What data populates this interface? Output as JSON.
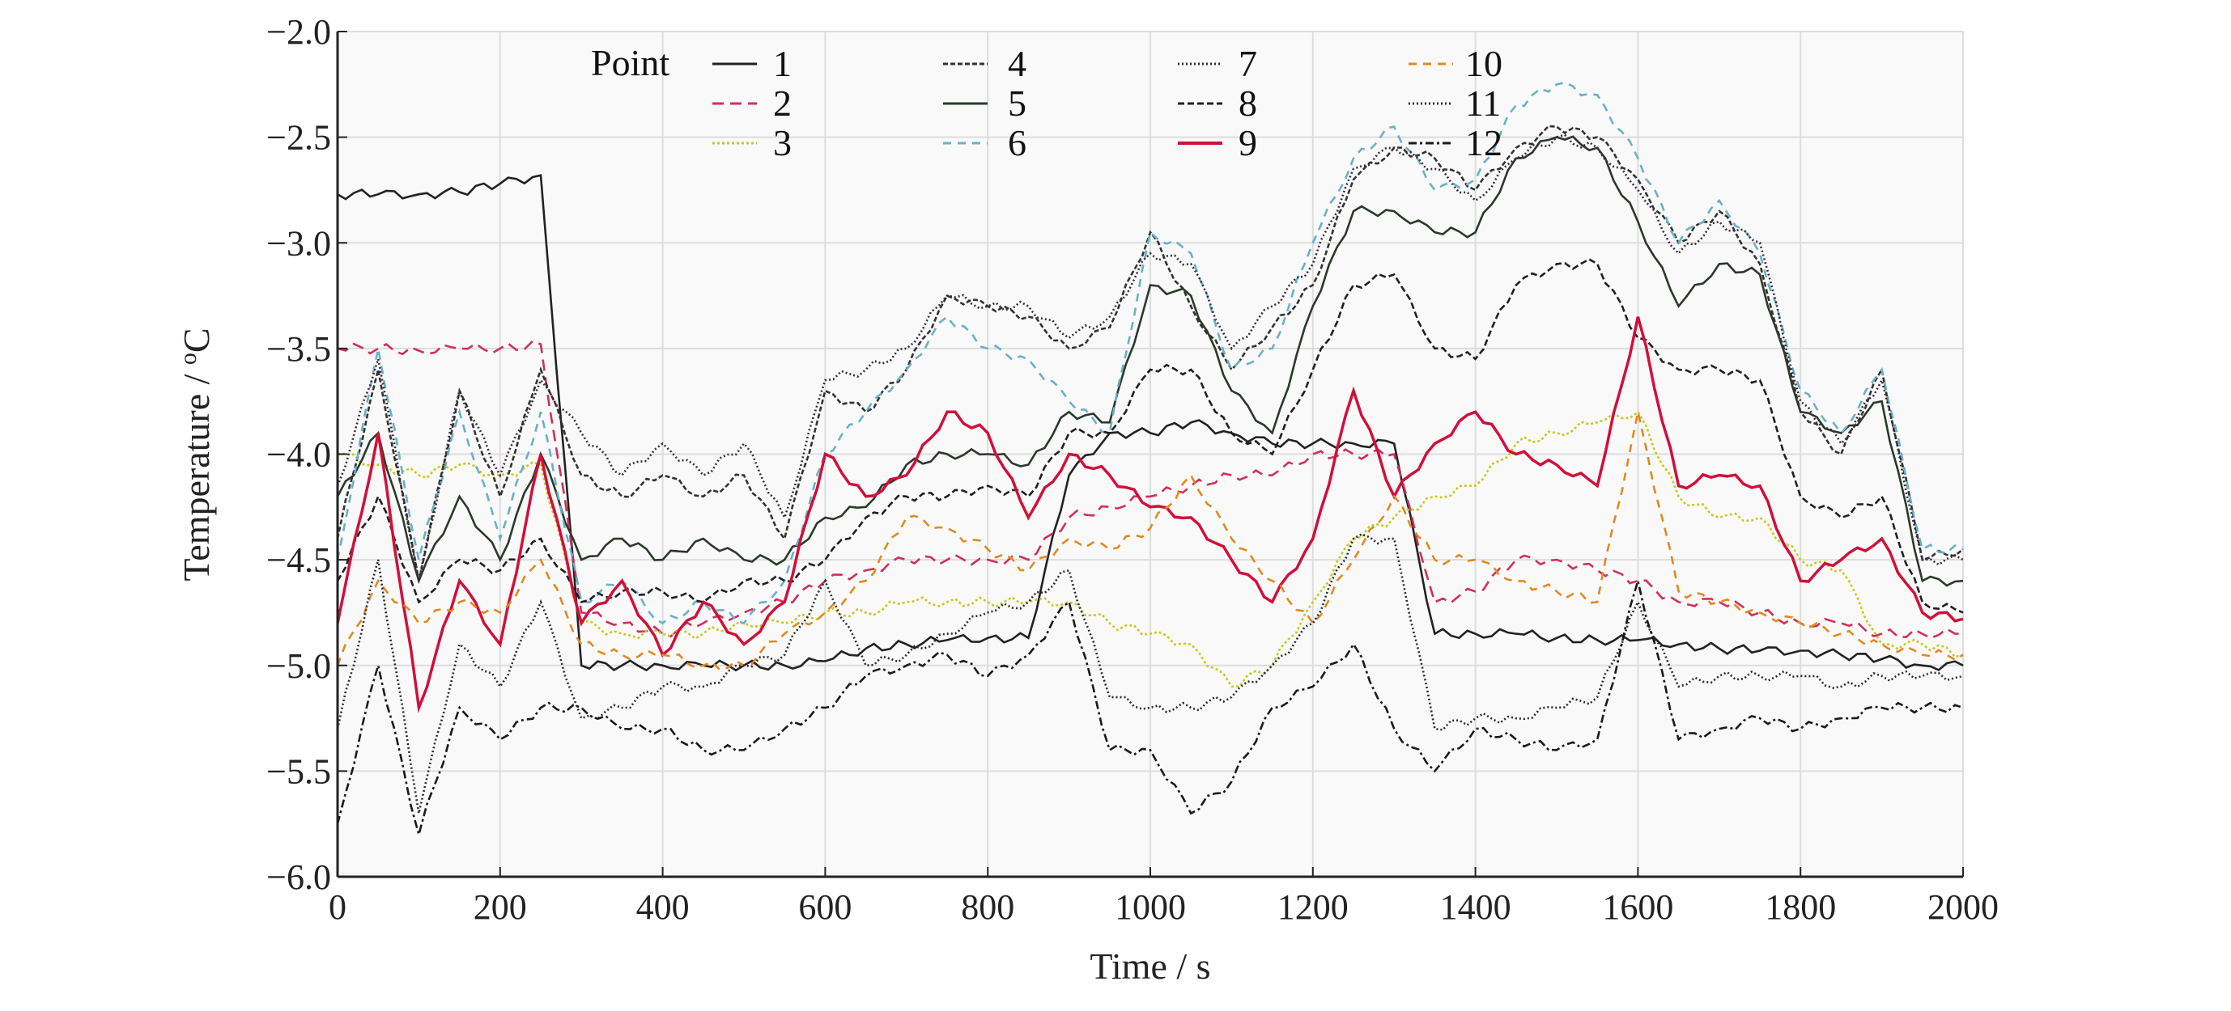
{
  "chart_data": {
    "type": "line",
    "xlabel": "Time / s",
    "ylabel_prefix": "Temperature / ",
    "ylabel_sup": "o",
    "ylabel_unit": "C",
    "xlim": [
      0,
      2000
    ],
    "ylim": [
      -6.0,
      -2.0
    ],
    "xticks": [
      "0",
      "200",
      "400",
      "600",
      "800",
      "1000",
      "1200",
      "1400",
      "1600",
      "1800",
      "2000"
    ],
    "yticks": [
      "−2.0",
      "−2.5",
      "−3.0",
      "−3.5",
      "−4.0",
      "−4.5",
      "−5.0",
      "−5.5",
      "−6.0"
    ],
    "grid": true,
    "legend_title": "Point",
    "legend_placement": "top-center",
    "x": [
      0,
      50,
      100,
      150,
      200,
      250,
      300,
      350,
      400,
      450,
      500,
      550,
      600,
      650,
      700,
      750,
      800,
      850,
      900,
      950,
      1000,
      1050,
      1100,
      1150,
      1200,
      1250,
      1300,
      1350,
      1400,
      1450,
      1500,
      1550,
      1600,
      1650,
      1700,
      1750,
      1800,
      1850,
      1900,
      1950,
      2000
    ],
    "series": [
      {
        "name": "1",
        "color": "#222222",
        "dash": "",
        "values": [
          -2.77,
          -2.77,
          -2.77,
          -2.76,
          -2.72,
          -2.68,
          -5.0,
          -5.0,
          -5.0,
          -5.0,
          -5.0,
          -5.0,
          -4.98,
          -4.92,
          -4.9,
          -4.88,
          -4.87,
          -4.87,
          -4.1,
          -3.9,
          -3.9,
          -3.85,
          -3.9,
          -3.95,
          -3.95,
          -3.95,
          -3.95,
          -4.85,
          -4.85,
          -4.85,
          -4.87,
          -4.88,
          -4.88,
          -4.9,
          -4.92,
          -4.93,
          -4.93,
          -4.95,
          -4.97,
          -5.0,
          -5.0
        ]
      },
      {
        "name": "2",
        "color": "#d0305a",
        "dash": "14,8",
        "values": [
          -3.5,
          -3.5,
          -3.51,
          -3.5,
          -3.5,
          -3.48,
          -4.75,
          -4.8,
          -4.85,
          -4.8,
          -4.75,
          -4.7,
          -4.6,
          -4.55,
          -4.5,
          -4.5,
          -4.5,
          -4.5,
          -4.3,
          -4.25,
          -4.2,
          -4.15,
          -4.1,
          -4.1,
          -4.0,
          -4.0,
          -4.0,
          -4.7,
          -4.65,
          -4.5,
          -4.5,
          -4.55,
          -4.6,
          -4.7,
          -4.7,
          -4.75,
          -4.8,
          -4.8,
          -4.85,
          -4.85,
          -4.85
        ]
      },
      {
        "name": "3",
        "color": "#c8c820",
        "dash": "3,3",
        "values": [
          -4.0,
          -4.05,
          -4.1,
          -4.05,
          -4.1,
          -4.05,
          -4.8,
          -4.85,
          -4.85,
          -4.85,
          -4.8,
          -4.8,
          -4.75,
          -4.75,
          -4.7,
          -4.7,
          -4.7,
          -4.7,
          -4.7,
          -4.8,
          -4.85,
          -4.9,
          -5.1,
          -5.0,
          -4.7,
          -4.4,
          -4.3,
          -4.2,
          -4.15,
          -3.95,
          -3.9,
          -3.85,
          -3.8,
          -4.2,
          -4.3,
          -4.3,
          -4.5,
          -4.55,
          -4.9,
          -4.9,
          -4.95
        ]
      },
      {
        "name": "4",
        "color": "#333333",
        "dash": "6,3",
        "values": [
          -4.4,
          -3.6,
          -4.6,
          -3.7,
          -4.2,
          -3.6,
          -4.1,
          -4.2,
          -4.1,
          -4.2,
          -4.1,
          -4.4,
          -3.7,
          -3.8,
          -3.6,
          -3.25,
          -3.3,
          -3.35,
          -3.5,
          -3.4,
          -2.95,
          -3.3,
          -3.6,
          -3.4,
          -3.2,
          -2.7,
          -2.55,
          -2.6,
          -2.75,
          -2.55,
          -2.45,
          -2.5,
          -2.7,
          -3.0,
          -2.85,
          -3.1,
          -3.8,
          -4.0,
          -3.6,
          -4.5,
          -4.45
        ]
      },
      {
        "name": "5",
        "color": "#2a3a2a",
        "dash": "",
        "values": [
          -4.2,
          -3.9,
          -4.6,
          -4.2,
          -4.5,
          -4.0,
          -4.5,
          -4.4,
          -4.5,
          -4.4,
          -4.5,
          -4.5,
          -4.3,
          -4.25,
          -4.05,
          -4.0,
          -4.0,
          -4.05,
          -3.8,
          -3.85,
          -3.2,
          -3.25,
          -3.7,
          -3.9,
          -3.3,
          -2.85,
          -2.85,
          -2.95,
          -2.95,
          -2.6,
          -2.5,
          -2.55,
          -2.9,
          -3.3,
          -3.1,
          -3.15,
          -3.8,
          -3.9,
          -3.75,
          -4.6,
          -4.6
        ]
      },
      {
        "name": "6",
        "color": "#6ab0c8",
        "dash": "10,8",
        "values": [
          -4.5,
          -3.5,
          -4.5,
          -3.8,
          -4.4,
          -3.8,
          -4.7,
          -4.6,
          -4.8,
          -4.7,
          -4.8,
          -4.6,
          -4.0,
          -3.8,
          -3.6,
          -3.35,
          -3.5,
          -3.55,
          -3.75,
          -3.9,
          -2.95,
          -3.05,
          -3.6,
          -3.5,
          -3.0,
          -2.6,
          -2.45,
          -2.75,
          -2.7,
          -2.35,
          -2.25,
          -2.3,
          -2.6,
          -3.0,
          -2.8,
          -3.05,
          -3.7,
          -3.9,
          -3.6,
          -4.45,
          -4.45
        ]
      },
      {
        "name": "7",
        "color": "#3a2a3a",
        "dash": "2,3",
        "values": [
          -4.15,
          -3.55,
          -4.6,
          -3.7,
          -4.1,
          -3.65,
          -3.9,
          -4.1,
          -3.95,
          -4.1,
          -3.95,
          -4.3,
          -3.65,
          -3.6,
          -3.5,
          -3.25,
          -3.3,
          -3.3,
          -3.45,
          -3.35,
          -3.05,
          -3.1,
          -3.5,
          -3.3,
          -3.1,
          -2.65,
          -2.55,
          -2.65,
          -2.8,
          -2.6,
          -2.5,
          -2.55,
          -2.75,
          -3.05,
          -2.9,
          -3.0,
          -3.75,
          -3.95,
          -3.65,
          -4.5,
          -4.5
        ]
      },
      {
        "name": "8",
        "color": "#202020",
        "dash": "8,4",
        "values": [
          -4.6,
          -4.2,
          -4.7,
          -4.5,
          -4.55,
          -4.4,
          -4.7,
          -4.65,
          -4.65,
          -4.7,
          -4.6,
          -4.6,
          -4.5,
          -4.3,
          -4.2,
          -4.2,
          -4.15,
          -4.2,
          -3.9,
          -3.9,
          -3.6,
          -3.6,
          -3.9,
          -4.0,
          -3.6,
          -3.2,
          -3.15,
          -3.5,
          -3.55,
          -3.2,
          -3.1,
          -3.1,
          -3.45,
          -3.6,
          -3.6,
          -3.65,
          -4.2,
          -4.3,
          -4.2,
          -4.7,
          -4.75
        ]
      },
      {
        "name": "9",
        "color": "#d0103a",
        "dash": "",
        "values": [
          -4.8,
          -3.9,
          -5.2,
          -4.6,
          -4.9,
          -4.0,
          -4.8,
          -4.6,
          -4.95,
          -4.7,
          -4.9,
          -4.7,
          -4.0,
          -4.2,
          -4.1,
          -3.8,
          -3.9,
          -4.3,
          -4.0,
          -4.1,
          -4.25,
          -4.3,
          -4.5,
          -4.7,
          -4.4,
          -3.7,
          -4.2,
          -3.95,
          -3.8,
          -4.0,
          -4.05,
          -4.15,
          -3.35,
          -4.15,
          -4.1,
          -4.15,
          -4.6,
          -4.5,
          -4.4,
          -4.75,
          -4.78
        ]
      },
      {
        "name": "10",
        "color": "#e08a20",
        "dash": "10,8",
        "values": [
          -5.0,
          -4.6,
          -4.8,
          -4.7,
          -4.75,
          -4.5,
          -4.9,
          -4.95,
          -4.95,
          -5.0,
          -5.0,
          -4.85,
          -4.75,
          -4.6,
          -4.3,
          -4.35,
          -4.45,
          -4.55,
          -4.4,
          -4.45,
          -4.35,
          -4.1,
          -4.4,
          -4.6,
          -4.8,
          -4.5,
          -4.2,
          -4.5,
          -4.5,
          -4.6,
          -4.65,
          -4.7,
          -3.8,
          -4.65,
          -4.7,
          -4.75,
          -4.8,
          -4.85,
          -4.9,
          -4.95,
          -4.95
        ]
      },
      {
        "name": "11",
        "color": "#2a2a2a",
        "dash": "2,3",
        "values": [
          -5.3,
          -4.5,
          -5.7,
          -4.9,
          -5.1,
          -4.7,
          -5.25,
          -5.2,
          -5.1,
          -5.1,
          -5.0,
          -4.95,
          -4.6,
          -5.0,
          -4.95,
          -4.85,
          -4.75,
          -4.7,
          -4.55,
          -5.15,
          -5.2,
          -5.2,
          -5.15,
          -5.0,
          -4.8,
          -4.4,
          -4.4,
          -5.3,
          -5.25,
          -5.25,
          -5.2,
          -5.15,
          -4.7,
          -5.1,
          -5.05,
          -5.05,
          -5.05,
          -5.1,
          -5.05,
          -5.05,
          -5.05
        ]
      },
      {
        "name": "12",
        "color": "#1a1a1a",
        "dash": "10,4,3,4",
        "values": [
          -5.75,
          -5.0,
          -5.8,
          -5.2,
          -5.35,
          -5.2,
          -5.2,
          -5.3,
          -5.3,
          -5.4,
          -5.4,
          -5.3,
          -5.2,
          -5.05,
          -5.0,
          -4.95,
          -5.05,
          -4.95,
          -4.7,
          -5.4,
          -5.4,
          -5.7,
          -5.55,
          -5.2,
          -5.1,
          -4.9,
          -5.3,
          -5.5,
          -5.3,
          -5.35,
          -5.4,
          -5.35,
          -4.6,
          -5.35,
          -5.3,
          -5.25,
          -5.3,
          -5.25,
          -5.2,
          -5.2,
          -5.2
        ]
      }
    ]
  }
}
